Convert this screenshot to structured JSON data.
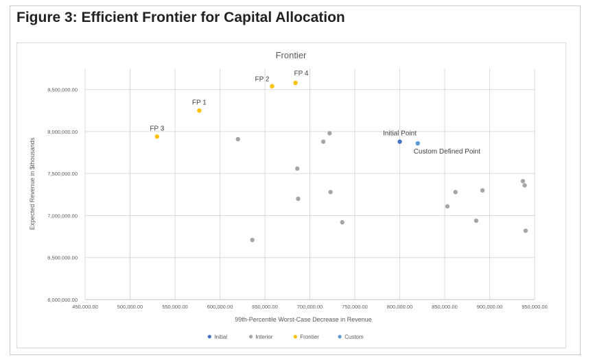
{
  "figure_title": "Figure 3: Efficient Frontier for Capital Allocation",
  "chart_data": {
    "type": "scatter",
    "title": "Frontier",
    "xlabel": "99th-Percentile Worst-Case Decrease in Revenue",
    "ylabel": "Expected Revenue in $thousands",
    "xlim": [
      450000,
      950000
    ],
    "ylim": [
      6000000,
      8750000
    ],
    "x_ticks": [
      450000,
      500000,
      550000,
      600000,
      650000,
      700000,
      750000,
      800000,
      850000,
      900000,
      950000
    ],
    "x_tick_labels": [
      "450,000.00",
      "500,000.00",
      "550,000.00",
      "600,000.00",
      "650,000.00",
      "700,000.00",
      "750,000.00",
      "800,000.00",
      "850,000.00",
      "900,000.00",
      "950,000.00"
    ],
    "y_ticks": [
      6000000,
      6500000,
      7000000,
      7500000,
      8000000,
      8500000
    ],
    "y_tick_labels": [
      "6,000,000.00",
      "6,500,000.00",
      "7,000,000.00",
      "7,500,000.00",
      "8,000,000.00",
      "8,500,000.00"
    ],
    "grid": true,
    "legend_position": "bottom",
    "series": [
      {
        "name": "Initial",
        "color": "#4472c4",
        "points": [
          {
            "x": 800000,
            "y": 7880000,
            "label": "Initial Point",
            "label_pos": "above"
          }
        ]
      },
      {
        "name": "Interior",
        "color": "#a5a5a5",
        "points": [
          {
            "x": 620000,
            "y": 7910000
          },
          {
            "x": 636000,
            "y": 6710000
          },
          {
            "x": 686000,
            "y": 7560000
          },
          {
            "x": 687000,
            "y": 7200000
          },
          {
            "x": 715000,
            "y": 7880000
          },
          {
            "x": 722000,
            "y": 7980000
          },
          {
            "x": 723000,
            "y": 7280000
          },
          {
            "x": 736000,
            "y": 6920000
          },
          {
            "x": 853000,
            "y": 7110000
          },
          {
            "x": 862000,
            "y": 7280000
          },
          {
            "x": 885000,
            "y": 6940000
          },
          {
            "x": 892000,
            "y": 7300000
          },
          {
            "x": 937000,
            "y": 7410000
          },
          {
            "x": 939000,
            "y": 7360000
          },
          {
            "x": 940000,
            "y": 6820000
          }
        ]
      },
      {
        "name": "Frontier",
        "color": "#ffc000",
        "points": [
          {
            "x": 530000,
            "y": 7940000,
            "label": "FP 3",
            "label_pos": "above"
          },
          {
            "x": 577000,
            "y": 8250000,
            "label": "FP 1",
            "label_pos": "above"
          },
          {
            "x": 658000,
            "y": 8540000,
            "label": "FP 2",
            "label_pos": "left-above"
          },
          {
            "x": 684000,
            "y": 8580000,
            "label": "FP 4",
            "label_pos": "above-right"
          }
        ]
      },
      {
        "name": "Custom",
        "color": "#5b9bd5",
        "points": [
          {
            "x": 820000,
            "y": 7860000,
            "label": "Custom Defined Point",
            "label_pos": "below"
          }
        ]
      }
    ]
  }
}
